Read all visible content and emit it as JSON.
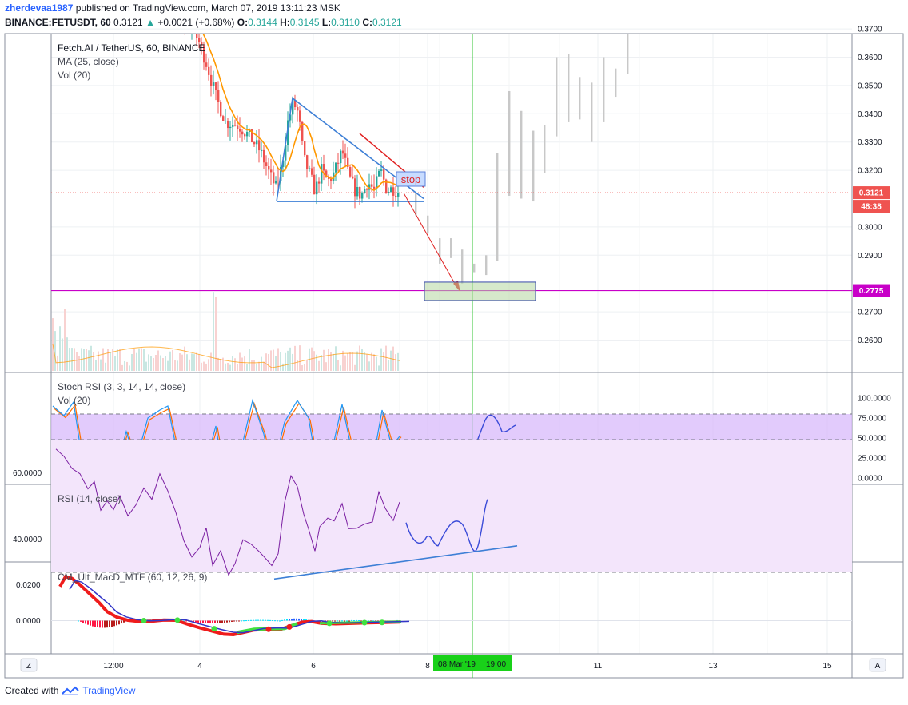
{
  "header": {
    "user": "zherdevaa1987",
    "published": "published on TradingView.com, March 07, 2019 13:11:23 MSK",
    "symbol": "BINANCE:FETUSDT, 60",
    "last": "0.3121",
    "change_arrow": "▲",
    "change": "+0.0021 (+0.68%)",
    "o_label": "O:",
    "o_value": "0.3144",
    "h_label": "H:",
    "h_value": "0.3145",
    "l_label": "L:",
    "l_value": "0.3110",
    "c_label": "C:",
    "c_value": "0.3121"
  },
  "legend": {
    "title": "Fetch.AI / TetherUS, 60, BINANCE",
    "ma": "MA (25, close)",
    "vol": "Vol (20)",
    "stoch": "Stoch RSI (3, 3, 14, 14, close)",
    "stoch_vol": "Vol (20)",
    "rsi": "RSI (14, close)",
    "macd": "CM_Ult_MacD_MTF (60, 12, 26, 9)"
  },
  "annotations": {
    "stop_label": "stop"
  },
  "price_tags": {
    "last_price": "0.3121",
    "countdown": "48:38",
    "target": "0.2775"
  },
  "time_tag": {
    "date": "08 Mar '19",
    "time": "19:00"
  },
  "axis_corner": {
    "left": "Z",
    "right": "A"
  },
  "footer": {
    "created_with": "Created with",
    "brand": "TradingView"
  },
  "colors": {
    "up": "#26a69a",
    "down": "#ef5350",
    "ma": "#ff9800",
    "drawing": "#3d7fd6",
    "stop_line": "#e02020",
    "target_line": "#c800c8",
    "vertical_line": "#34c534",
    "stoch_k": "#2196f3",
    "stoch_d": "#ff6d00",
    "rsi": "#7b1fa2",
    "band": "#d8b9fb"
  },
  "chart_data": [
    {
      "type": "candlestick",
      "title": "Fetch.AI / TetherUS, 60, BINANCE",
      "price_axis": [
        "0.3700",
        "0.3600",
        "0.3500",
        "0.3400",
        "0.3300",
        "0.3200",
        "0.3000",
        "0.2900",
        "0.2700",
        "0.2600"
      ],
      "time_axis": [
        "12:00",
        "4",
        "6",
        "8",
        "11",
        "13",
        "15"
      ],
      "ylim": [
        0.2595,
        0.3795
      ],
      "last_price": 0.3121,
      "target_level": 0.2775,
      "drawings": [
        "descending triangle with resistance from 0.3455 to 0.3100 and support at 0.3090",
        "red 'stop' line above triangle",
        "red arrow projecting down to target box near 0.2775",
        "grey projected bars rising to above 0.3700"
      ]
    },
    {
      "type": "line",
      "title": "Stoch RSI (3, 3, 14, 14, close)",
      "y_axis": [
        "100.0000",
        "75.0000",
        "50.0000",
        "25.0000",
        "0.0000"
      ],
      "ylim": [
        0,
        100
      ],
      "bands": [
        20,
        80
      ],
      "series": []
    },
    {
      "type": "line",
      "title": "RSI (14, close)",
      "y_axis": [
        "60.0000",
        "40.0000"
      ],
      "ylim": [
        25,
        75
      ],
      "bands": [
        30,
        70
      ],
      "series": []
    },
    {
      "type": "line",
      "title": "CM_Ult_MacD_MTF (60, 12, 26, 9)",
      "y_axis": [
        "0.0200",
        "0.0000"
      ],
      "ylim": [
        -0.0075,
        0.0275
      ],
      "series": []
    }
  ]
}
